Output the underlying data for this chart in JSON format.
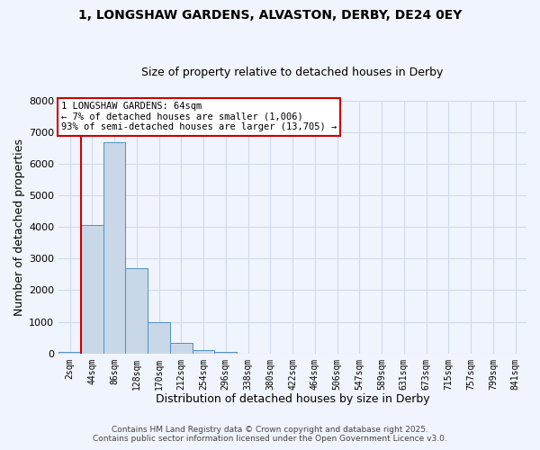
{
  "title_line1": "1, LONGSHAW GARDENS, ALVASTON, DERBY, DE24 0EY",
  "title_line2": "Size of property relative to detached houses in Derby",
  "xlabel": "Distribution of detached houses by size in Derby",
  "ylabel": "Number of detached properties",
  "bar_labels": [
    "2sqm",
    "44sqm",
    "86sqm",
    "128sqm",
    "170sqm",
    "212sqm",
    "254sqm",
    "296sqm",
    "338sqm",
    "380sqm",
    "422sqm",
    "464sqm",
    "506sqm",
    "547sqm",
    "589sqm",
    "631sqm",
    "673sqm",
    "715sqm",
    "757sqm",
    "799sqm",
    "841sqm"
  ],
  "bar_values": [
    50,
    4050,
    6680,
    2700,
    1000,
    330,
    110,
    50,
    0,
    0,
    0,
    0,
    0,
    0,
    0,
    0,
    0,
    0,
    0,
    0,
    0
  ],
  "bar_color": "#c8d8e8",
  "bar_edge_color": "#5090c0",
  "grid_color": "#d0d8e8",
  "background_color": "#f0f4fc",
  "vline_color": "#cc0000",
  "vline_x": 0.5,
  "annotation_title": "1 LONGSHAW GARDENS: 64sqm",
  "annotation_line2": "← 7% of detached houses are smaller (1,006)",
  "annotation_line3": "93% of semi-detached houses are larger (13,705) →",
  "annotation_box_color": "#ffffff",
  "annotation_border_color": "#cc0000",
  "ylim": [
    0,
    8000
  ],
  "yticks": [
    0,
    1000,
    2000,
    3000,
    4000,
    5000,
    6000,
    7000,
    8000
  ],
  "footnote_line1": "Contains HM Land Registry data © Crown copyright and database right 2025.",
  "footnote_line2": "Contains public sector information licensed under the Open Government Licence v3.0."
}
